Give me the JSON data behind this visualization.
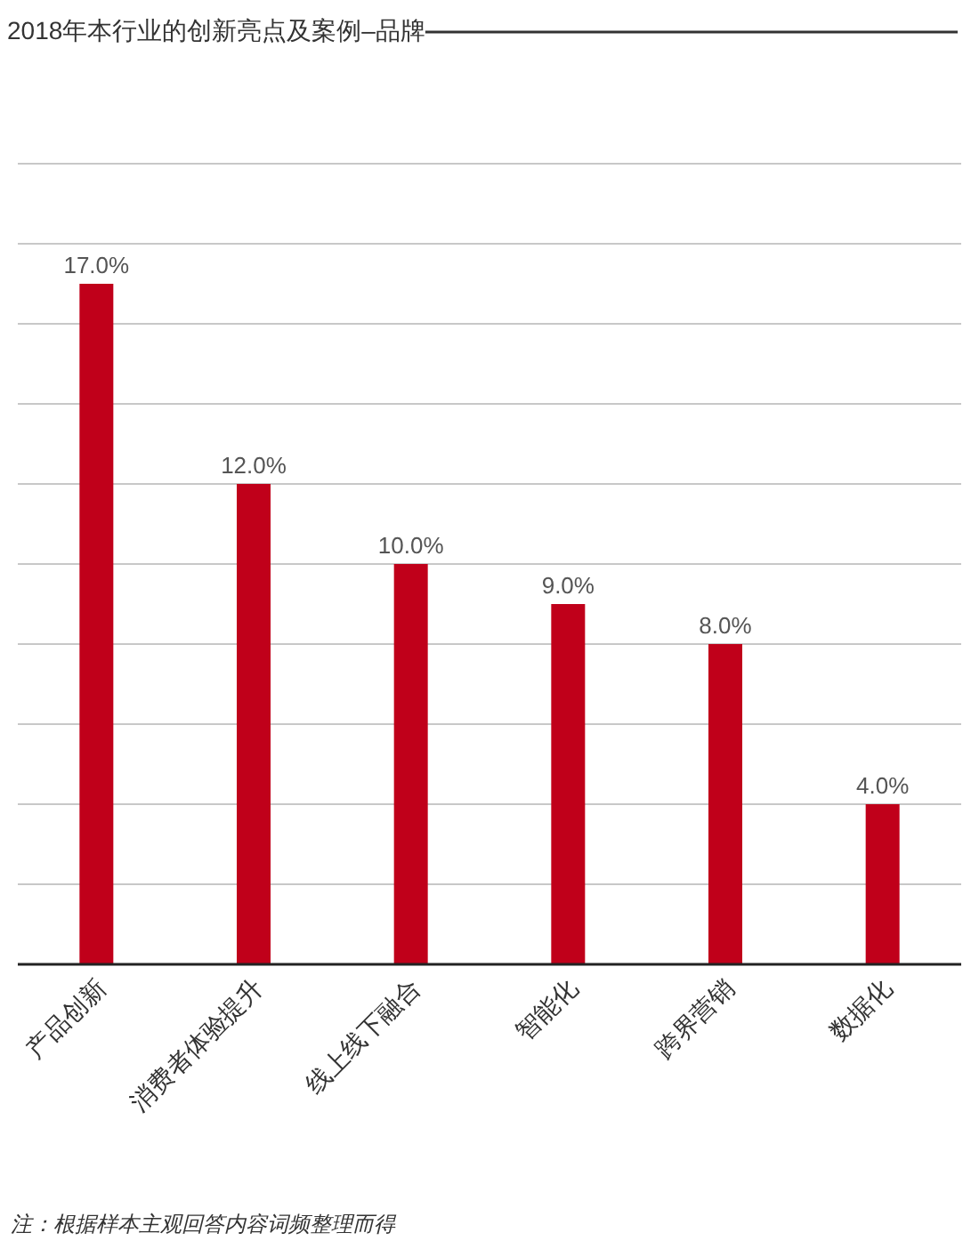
{
  "chart_data": {
    "type": "bar",
    "title": "2018年本行业的创新亮点及案例–品牌",
    "categories": [
      "产品创新",
      "消费者体验提升",
      "线上线下融合",
      "智能化",
      "跨界营销",
      "数据化"
    ],
    "values": [
      17,
      12,
      10,
      9,
      8,
      4
    ],
    "value_labels": [
      "17.0%",
      "12.0%",
      "10.0%",
      "9.0%",
      "8.0%",
      "4.0%"
    ],
    "color": "#c0001a",
    "ylim": [
      0,
      20
    ],
    "yticks": [
      {
        "value": 0,
        "label": null
      },
      {
        "value": 2,
        "label": null
      },
      {
        "value": 4,
        "label": null
      },
      {
        "value": 6,
        "label": null
      },
      {
        "value": 8,
        "label": null
      },
      {
        "value": 10,
        "label": null
      },
      {
        "value": 12,
        "label": null
      },
      {
        "value": 14,
        "label": null
      },
      {
        "value": 16,
        "label": null
      },
      {
        "value": 18,
        "label": null
      },
      {
        "value": 20,
        "label": null
      }
    ],
    "grid": "y",
    "tick_labels": "x",
    "annotations": [
      "注：根据样本主观回答内容词频整理而得"
    ]
  }
}
